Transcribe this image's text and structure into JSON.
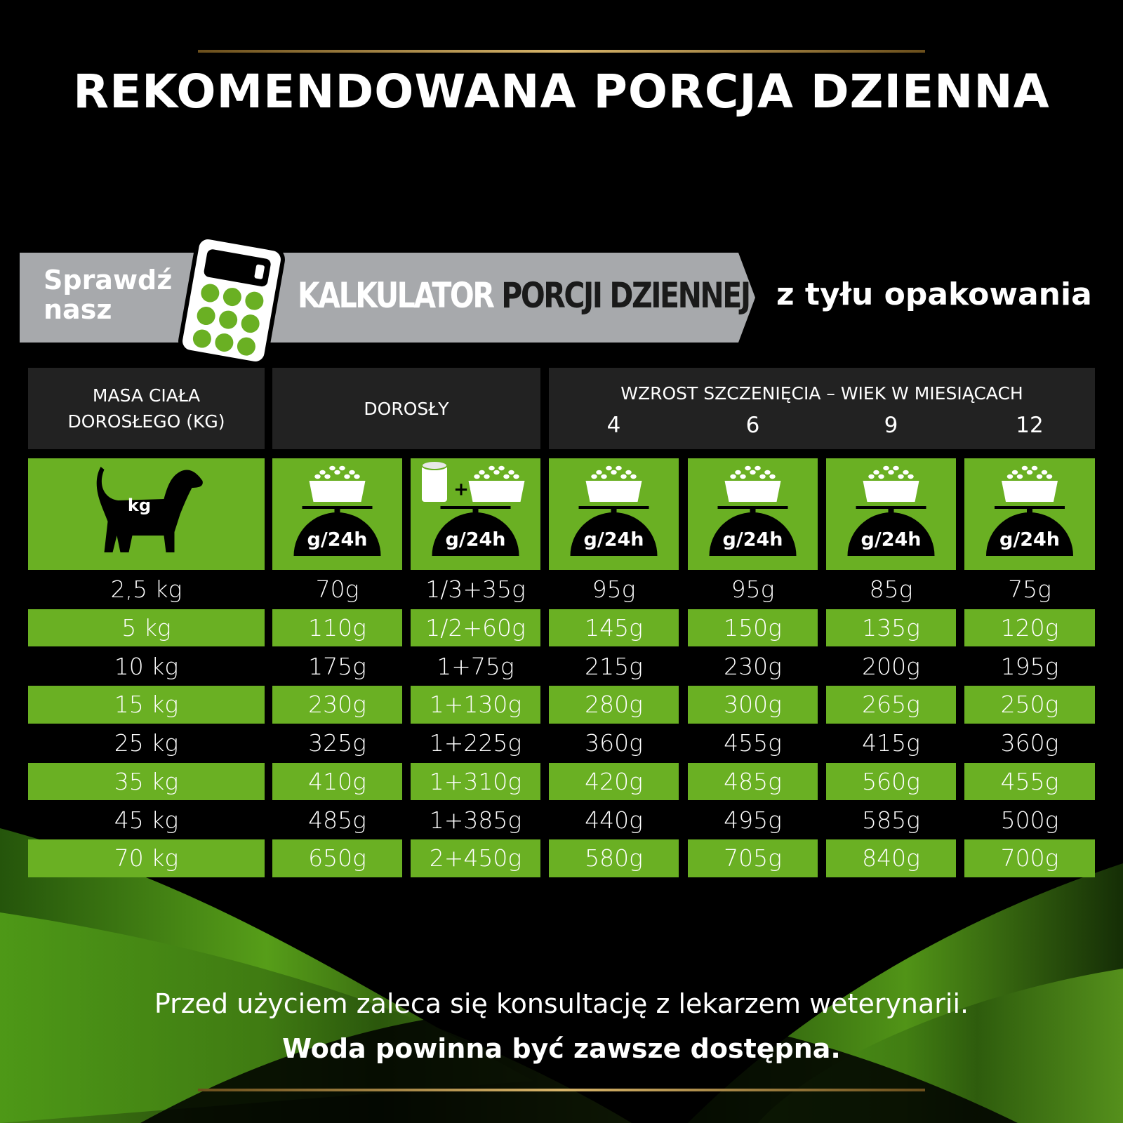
{
  "title": "REKOMENDOWANA PORCJA DZIENNA",
  "banner": {
    "check_lines": [
      "Sprawdź",
      "nasz"
    ],
    "calc_word_1": "KALKULATOR",
    "calc_word_2": "PORCJI DZIENNEJ",
    "suffix": "z tyłu opakowania"
  },
  "table": {
    "header": {
      "weight_lines": [
        "MASA CIAŁA",
        "DOROSŁEGO (KG)"
      ],
      "adult": "DOROSŁY",
      "growth": "WZROST SZCZENIĘCIA – WIEK W MIESIĄCACH",
      "ages": [
        "4",
        "6",
        "9",
        "12"
      ]
    },
    "icons": {
      "dog_label": "kg",
      "plus": "+",
      "unit_labels": [
        "g/24h",
        "g/24h",
        "g/24h",
        "g/24h",
        "g/24h",
        "g/24h"
      ]
    },
    "rows": [
      [
        "2,5 kg",
        "70g",
        "1/3+35g",
        "95g",
        "95g",
        "85g",
        "75g"
      ],
      [
        "5 kg",
        "110g",
        "1/2+60g",
        "145g",
        "150g",
        "135g",
        "120g"
      ],
      [
        "10 kg",
        "175g",
        "1+75g",
        "215g",
        "230g",
        "200g",
        "195g"
      ],
      [
        "15 kg",
        "230g",
        "1+130g",
        "280g",
        "300g",
        "265g",
        "250g"
      ],
      [
        "25 kg",
        "325g",
        "1+225g",
        "360g",
        "455g",
        "415g",
        "360g"
      ],
      [
        "35 kg",
        "410g",
        "1+310g",
        "420g",
        "485g",
        "560g",
        "455g"
      ],
      [
        "45 kg",
        "485g",
        "1+385g",
        "440g",
        "495g",
        "585g",
        "500g"
      ],
      [
        "70 kg",
        "650g",
        "2+450g",
        "580g",
        "705g",
        "840g",
        "700g"
      ]
    ]
  },
  "footer": {
    "note": "Przed użyciem zaleca się konsultację z lekarzem weterynarii.",
    "bold": "Woda powinna być zawsze dostępna."
  }
}
